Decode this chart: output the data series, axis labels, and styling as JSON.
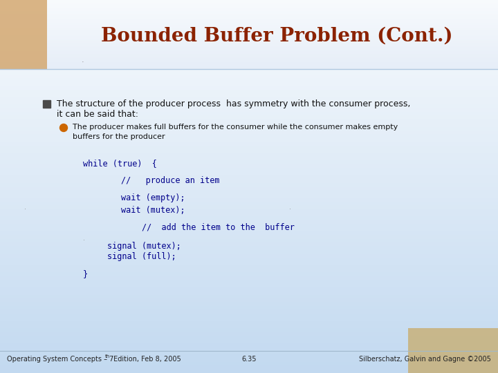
{
  "title": "Bounded Buffer Problem (Cont.)",
  "title_color": "#8B2200",
  "title_fontsize": 20,
  "bg_color_top": "#ffffff",
  "bg_color_bottom": "#c8dff0",
  "header_bg": "#f0f4f8",
  "bullet1_line1": "The structure of the producer process  has symmetry with the consumer process,",
  "bullet1_line2": "it can be said that:",
  "bullet2_line1": "The producer makes full buffers for the consumer while the consumer makes empty",
  "bullet2_line2": "buffers for the producer",
  "code_color": "#00008B",
  "code_fontsize": 8.5,
  "footer_left": "Operating System Concepts – 7",
  "footer_left_super": "th",
  "footer_left_end": " Edition, Feb 8, 2005",
  "footer_center": "6.35",
  "footer_right": "Silberschatz, Galvin and Gagne ©2005",
  "footer_color": "#222222",
  "footer_fontsize": 7.0,
  "text_color": "#111111",
  "text_fontsize": 9.0,
  "sub_bullet_color": "#CC6600",
  "square_bullet_color": "#4a4a4a"
}
